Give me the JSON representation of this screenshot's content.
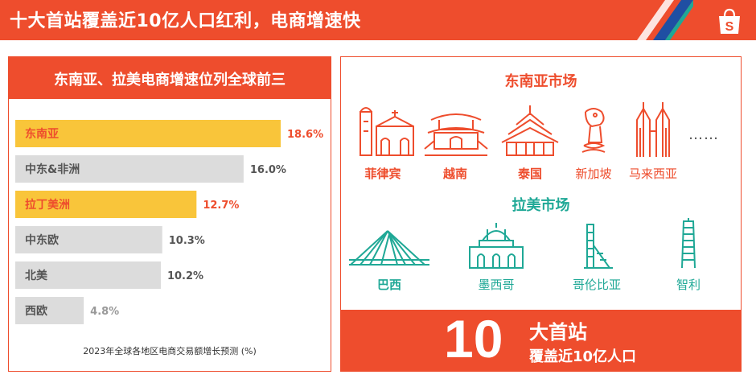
{
  "header": {
    "title": "十大首站覆盖近10亿人口红利，电商增速快"
  },
  "left_panel": {
    "title": "东南亚、拉美电商增速位列全球前三",
    "caption": "2023年全球各地区电商交易额增长预测 (%)"
  },
  "chart_data": {
    "type": "bar",
    "orientation": "horizontal",
    "categories": [
      "东南亚",
      "中东&非洲",
      "拉丁美洲",
      "中东欧",
      "北美",
      "西欧"
    ],
    "values": [
      18.6,
      16.0,
      12.7,
      10.3,
      10.2,
      4.8
    ],
    "value_labels": [
      "18.6%",
      "16.0%",
      "12.7%",
      "10.3%",
      "10.2%",
      "4.8%"
    ],
    "highlight": [
      true,
      false,
      true,
      false,
      false,
      false
    ],
    "colors": {
      "highlight_bar": "#f9c53a",
      "normal_bar": "#dcdcdc",
      "highlight_text": "#ee4d2d",
      "normal_text": "#555555"
    }
  },
  "right_panel": {
    "sea_title": "东南亚市场",
    "sea_countries": [
      {
        "name": "菲律宾",
        "icon": "church-icon",
        "bold": true
      },
      {
        "name": "越南",
        "icon": "pagoda-icon",
        "bold": true
      },
      {
        "name": "泰国",
        "icon": "temple-icon",
        "bold": true
      },
      {
        "name": "新加坡",
        "icon": "merlion-icon",
        "bold": false
      },
      {
        "name": "马来西亚",
        "icon": "twin-towers-icon",
        "bold": false
      }
    ],
    "sea_more": "……",
    "latam_title": "拉美市场",
    "latam_countries": [
      {
        "name": "巴西",
        "icon": "bridge-icon",
        "bold": true
      },
      {
        "name": "墨西哥",
        "icon": "palace-icon",
        "bold": false
      },
      {
        "name": "哥伦比亚",
        "icon": "tower-icon",
        "bold": false
      },
      {
        "name": "智利",
        "icon": "skyscraper-icon",
        "bold": false
      }
    ],
    "bottom": {
      "number": "10",
      "line1": "大首站",
      "line2": "覆盖近10亿人口"
    }
  },
  "colors": {
    "brand": "#ee4d2d",
    "teal": "#1fa896"
  }
}
